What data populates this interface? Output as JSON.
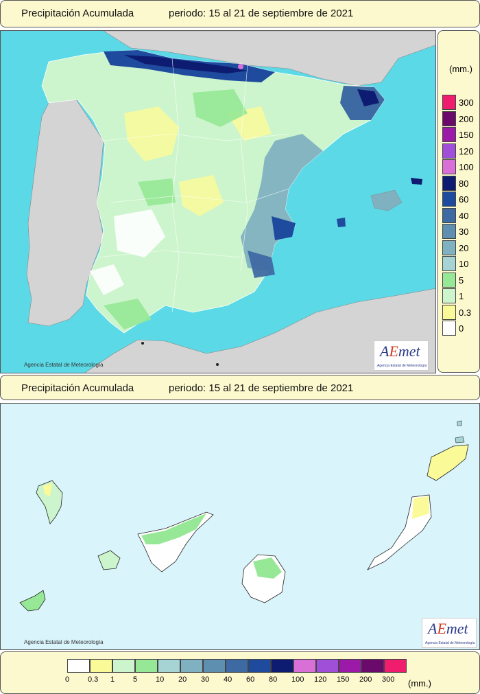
{
  "titles": {
    "top": {
      "label": "Precipitación Acumulada",
      "period": "periodo: 15 al 21 de septiembre de 2021"
    },
    "bottom": {
      "label": "Precipitación Acumulada",
      "period": "periodo: 15 al 21 de septiembre de 2021"
    }
  },
  "legend": {
    "unit": "(mm.)",
    "classes": [
      {
        "label": "0",
        "color": "#ffffff"
      },
      {
        "label": "0.3",
        "color": "#fafa99"
      },
      {
        "label": "1",
        "color": "#cdf5cd"
      },
      {
        "label": "5",
        "color": "#96e896"
      },
      {
        "label": "10",
        "color": "#a6d4d4"
      },
      {
        "label": "20",
        "color": "#7fb1c0"
      },
      {
        "label": "30",
        "color": "#5f8fb0"
      },
      {
        "label": "40",
        "color": "#3e6aa3"
      },
      {
        "label": "60",
        "color": "#1e4b9e"
      },
      {
        "label": "80",
        "color": "#0d1c70"
      },
      {
        "label": "100",
        "color": "#d870d8"
      },
      {
        "label": "120",
        "color": "#a050d8"
      },
      {
        "label": "150",
        "color": "#9c1aa8"
      },
      {
        "label": "200",
        "color": "#6a0a6a"
      },
      {
        "label": "300",
        "color": "#f01c6e"
      }
    ]
  },
  "credit": "Agencia Estatal de Meteorología",
  "logo": {
    "word_a": "A",
    "word_e": "E",
    "word_rest": "met",
    "sub": "Agencia Estatal de Meteorología"
  },
  "colors": {
    "sea_peninsula": "#5cd9e6",
    "sea_canarias": "#d9f4fb",
    "land_outside": "#d4d4d4"
  }
}
